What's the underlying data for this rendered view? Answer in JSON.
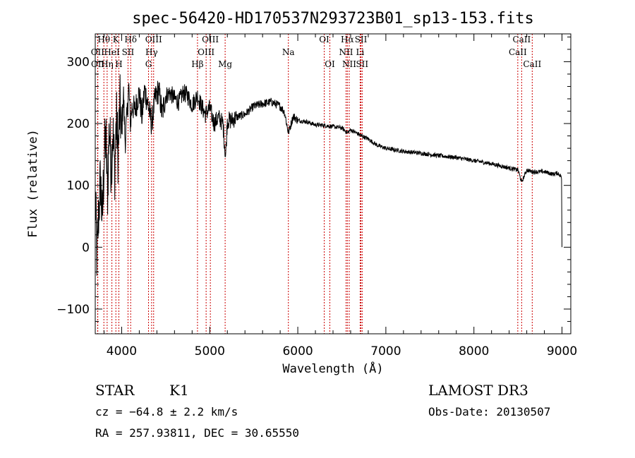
{
  "chart_data": {
    "type": "line",
    "title": "spec-56420-HD170537N293723B01_sp13-153.fits",
    "xlabel": "Wavelength (Å)",
    "ylabel": "Flux (relative)",
    "xlim": [
      3700,
      9100
    ],
    "ylim": [
      -140,
      345
    ],
    "x_ticks": [
      4000,
      5000,
      6000,
      7000,
      8000,
      9000
    ],
    "y_ticks": [
      -100,
      0,
      100,
      200,
      300
    ],
    "series": [
      {
        "name": "spectrum",
        "x": [
          3700,
          3720,
          3740,
          3760,
          3780,
          3800,
          3820,
          3840,
          3860,
          3880,
          3900,
          3920,
          3940,
          3960,
          3980,
          4000,
          4020,
          4040,
          4060,
          4080,
          4100,
          4120,
          4150,
          4180,
          4200,
          4230,
          4260,
          4300,
          4340,
          4380,
          4420,
          4460,
          4500,
          4550,
          4600,
          4650,
          4700,
          4750,
          4800,
          4860,
          4900,
          4950,
          5000,
          5050,
          5100,
          5150,
          5180,
          5200,
          5250,
          5300,
          5400,
          5500,
          5600,
          5700,
          5800,
          5850,
          5893,
          5950,
          6000,
          6100,
          6200,
          6300,
          6400,
          6500,
          6563,
          6600,
          6700,
          6800,
          6900,
          7000,
          7200,
          7400,
          7600,
          7800,
          8000,
          8200,
          8400,
          8500,
          8542,
          8600,
          8662,
          8800,
          8900,
          8950,
          8990,
          9000
        ],
        "y": [
          80,
          -20,
          60,
          110,
          40,
          140,
          180,
          90,
          200,
          130,
          190,
          120,
          210,
          150,
          230,
          180,
          250,
          170,
          210,
          260,
          200,
          230,
          220,
          240,
          250,
          210,
          255,
          230,
          200,
          240,
          255,
          215,
          245,
          250,
          240,
          235,
          250,
          245,
          230,
          245,
          230,
          215,
          225,
          200,
          210,
          200,
          145,
          205,
          205,
          210,
          215,
          228,
          232,
          235,
          228,
          218,
          185,
          212,
          205,
          203,
          198,
          197,
          195,
          193,
          185,
          190,
          182,
          175,
          165,
          160,
          155,
          152,
          148,
          145,
          140,
          135,
          128,
          125,
          105,
          125,
          122,
          122,
          118,
          120,
          115,
          0
        ]
      }
    ],
    "lines": [
      {
        "label": "Hθ",
        "x": 3798,
        "row": 0
      },
      {
        "label": "OII",
        "x": 3727,
        "row": 1
      },
      {
        "label": "OII",
        "x": 3729,
        "row": 2
      },
      {
        "label": "Hη",
        "x": 3835,
        "row": 2
      },
      {
        "label": "HeI",
        "x": 3889,
        "row": 1
      },
      {
        "label": "K",
        "x": 3934,
        "row": 0
      },
      {
        "label": "H",
        "x": 3968,
        "row": 2
      },
      {
        "label": "SII",
        "x": 4072,
        "row": 1
      },
      {
        "label": "Hδ",
        "x": 4102,
        "row": 0
      },
      {
        "label": "OIII",
        "x": 4363,
        "row": 0
      },
      {
        "label": "Hγ",
        "x": 4340,
        "row": 1
      },
      {
        "label": "G",
        "x": 4305,
        "row": 2
      },
      {
        "label": "Hβ",
        "x": 4861,
        "row": 2
      },
      {
        "label": "OIII",
        "x": 5007,
        "row": 0
      },
      {
        "label": "OIII",
        "x": 4959,
        "row": 1
      },
      {
        "label": "Mg",
        "x": 5175,
        "row": 2
      },
      {
        "label": "Na",
        "x": 5893,
        "row": 1
      },
      {
        "label": "OI",
        "x": 6300,
        "row": 0
      },
      {
        "label": "OI",
        "x": 6364,
        "row": 2
      },
      {
        "label": "Hα",
        "x": 6563,
        "row": 0
      },
      {
        "label": "SII",
        "x": 6717,
        "row": 0
      },
      {
        "label": "NII",
        "x": 6548,
        "row": 1
      },
      {
        "label": "Li",
        "x": 6708,
        "row": 1
      },
      {
        "label": "NII",
        "x": 6584,
        "row": 2
      },
      {
        "label": "SII",
        "x": 6731,
        "row": 2
      },
      {
        "label": "CaII",
        "x": 8542,
        "row": 0
      },
      {
        "label": "CaII",
        "x": 8498,
        "row": 1
      },
      {
        "label": "CaII",
        "x": 8662,
        "row": 2
      }
    ]
  },
  "info": {
    "class_label": "STAR",
    "subclass": "K1",
    "survey": "LAMOST DR3",
    "redshift": "cz = −64.8 ± 2.2 km/s",
    "obs_date": "Obs-Date: 20130507",
    "coords": "RA = 257.93811, DEC =  30.65550"
  },
  "colors": {
    "line_marker": "#cc0000",
    "spectrum": "#000000",
    "axis": "#000000"
  }
}
